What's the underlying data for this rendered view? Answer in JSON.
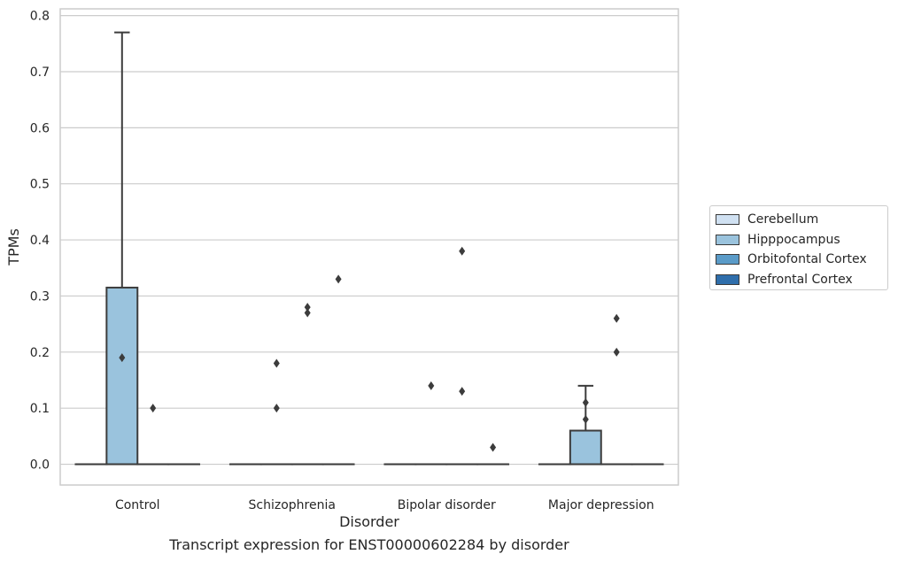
{
  "caption": "Transcript expression for ENST00000602284 by disorder",
  "chart_data": {
    "type": "box",
    "xlabel": "Disorder",
    "ylabel": "TPMs",
    "categories": [
      "Control",
      "Schizophrenia",
      "Bipolar disorder",
      "Major depression"
    ],
    "yticks": [
      "0.0",
      "0.1",
      "0.2",
      "0.3",
      "0.4",
      "0.5",
      "0.6",
      "0.7",
      "0.8"
    ],
    "ylim": [
      -0.037,
      0.812
    ],
    "grid": true,
    "legend_position": "right",
    "series": [
      {
        "name": "Cerebellum",
        "color": "#d0e1f2",
        "boxes": [
          {
            "category": "Control",
            "q1": 0,
            "median": 0,
            "q3": 0,
            "whisker_low": 0,
            "whisker_high": 0,
            "outliers": []
          },
          {
            "category": "Schizophrenia",
            "q1": 0,
            "median": 0,
            "q3": 0,
            "whisker_low": 0,
            "whisker_high": 0,
            "outliers": []
          },
          {
            "category": "Bipolar disorder",
            "q1": 0,
            "median": 0,
            "q3": 0,
            "whisker_low": 0,
            "whisker_high": 0,
            "outliers": []
          },
          {
            "category": "Major depression",
            "q1": 0,
            "median": 0,
            "q3": 0,
            "whisker_low": 0,
            "whisker_high": 0,
            "outliers": []
          }
        ]
      },
      {
        "name": "Hipppocampus",
        "color": "#9ac3dd",
        "boxes": [
          {
            "category": "Control",
            "q1": 0,
            "median": 0,
            "q3": 0.315,
            "whisker_low": 0,
            "whisker_high": 0.77,
            "outliers": [
              0.19
            ]
          },
          {
            "category": "Schizophrenia",
            "q1": 0,
            "median": 0,
            "q3": 0,
            "whisker_low": 0,
            "whisker_high": 0,
            "outliers": [
              0.1,
              0.18
            ]
          },
          {
            "category": "Bipolar disorder",
            "q1": 0,
            "median": 0,
            "q3": 0,
            "whisker_low": 0,
            "whisker_high": 0,
            "outliers": [
              0.14
            ]
          },
          {
            "category": "Major depression",
            "q1": 0,
            "median": 0,
            "q3": 0.06,
            "whisker_low": 0,
            "whisker_high": 0.14,
            "outliers": [
              0.08,
              0.11
            ]
          }
        ]
      },
      {
        "name": "Orbitofontal Cortex",
        "color": "#5a9bc8",
        "boxes": [
          {
            "category": "Control",
            "q1": 0,
            "median": 0,
            "q3": 0,
            "whisker_low": 0,
            "whisker_high": 0,
            "outliers": [
              0.1
            ]
          },
          {
            "category": "Schizophrenia",
            "q1": 0,
            "median": 0,
            "q3": 0,
            "whisker_low": 0,
            "whisker_high": 0,
            "outliers": [
              0.27,
              0.28
            ]
          },
          {
            "category": "Bipolar disorder",
            "q1": 0,
            "median": 0,
            "q3": 0,
            "whisker_low": 0,
            "whisker_high": 0,
            "outliers": [
              0.13,
              0.38
            ]
          },
          {
            "category": "Major depression",
            "q1": 0,
            "median": 0,
            "q3": 0,
            "whisker_low": 0,
            "whisker_high": 0,
            "outliers": [
              0.2,
              0.26
            ]
          }
        ]
      },
      {
        "name": "Prefrontal Cortex",
        "color": "#2f6eab",
        "boxes": [
          {
            "category": "Control",
            "q1": 0,
            "median": 0,
            "q3": 0,
            "whisker_low": 0,
            "whisker_high": 0,
            "outliers": []
          },
          {
            "category": "Schizophrenia",
            "q1": 0,
            "median": 0,
            "q3": 0,
            "whisker_low": 0,
            "whisker_high": 0,
            "outliers": [
              0.33
            ]
          },
          {
            "category": "Bipolar disorder",
            "q1": 0,
            "median": 0,
            "q3": 0,
            "whisker_low": 0,
            "whisker_high": 0,
            "outliers": [
              0.03
            ]
          },
          {
            "category": "Major depression",
            "q1": 0,
            "median": 0,
            "q3": 0,
            "whisker_low": 0,
            "whisker_high": 0,
            "outliers": []
          }
        ]
      }
    ]
  }
}
